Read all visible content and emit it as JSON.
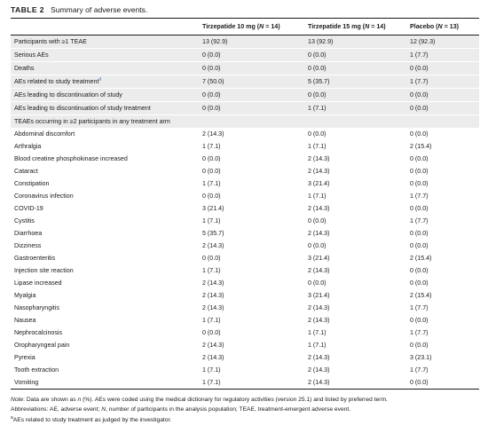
{
  "caption": {
    "label": "TABLE 2",
    "text": "Summary of adverse events."
  },
  "columns": [
    {
      "pre": "",
      "it": "",
      "post": ""
    },
    {
      "pre": "Tirzepatide 10 mg (",
      "it": "N",
      "post": " = 14)"
    },
    {
      "pre": "Tirzepatide 15 mg (",
      "it": "N",
      "post": " = 14)"
    },
    {
      "pre": "Placebo (",
      "it": "N",
      "post": " = 13)"
    }
  ],
  "summary_rows": [
    {
      "label": "Participants with ≥1 TEAE",
      "values": [
        "13 (92.9)",
        "13 (92.9)",
        "12 (92.3)"
      ]
    },
    {
      "label": "Serious AEs",
      "values": [
        "0 (0.0)",
        "0 (0.0)",
        "1 (7.7)"
      ]
    },
    {
      "label": "Deaths",
      "values": [
        "0 (0.0)",
        "0 (0.0)",
        "0 (0.0)"
      ]
    },
    {
      "label": "AEs related to study treatment",
      "mark": "a",
      "values": [
        "7 (50.0)",
        "5 (35.7)",
        "1 (7.7)"
      ]
    },
    {
      "label": "AEs leading to discontinuation of study",
      "values": [
        "0 (0.0)",
        "0 (0.0)",
        "0 (0.0)"
      ]
    },
    {
      "label": "AEs leading to discontinuation of study treatment",
      "values": [
        "0 (0.0)",
        "1 (7.1)",
        "0 (0.0)"
      ]
    }
  ],
  "section_heading": "TEAEs occurring in ≥2 participants in any treatment arm",
  "teae_rows": [
    {
      "label": "Abdominal discomfort",
      "values": [
        "2 (14.3)",
        "0 (0.0)",
        "0 (0.0)"
      ]
    },
    {
      "label": "Arthralgia",
      "values": [
        "1 (7.1)",
        "1 (7.1)",
        "2 (15.4)"
      ]
    },
    {
      "label": "Blood creatine phosphokinase increased",
      "values": [
        "0 (0.0)",
        "2 (14.3)",
        "0 (0.0)"
      ]
    },
    {
      "label": "Cataract",
      "values": [
        "0 (0.0)",
        "2 (14.3)",
        "0 (0.0)"
      ]
    },
    {
      "label": "Constipation",
      "values": [
        "1 (7.1)",
        "3 (21.4)",
        "0 (0.0)"
      ]
    },
    {
      "label": "Coronavirus infection",
      "values": [
        "0 (0.0)",
        "1 (7.1)",
        "1 (7.7)"
      ]
    },
    {
      "label": "COVID-19",
      "values": [
        "3 (21.4)",
        "2 (14.3)",
        "0 (0.0)"
      ]
    },
    {
      "label": "Cystitis",
      "values": [
        "1 (7.1)",
        "0 (0.0)",
        "1 (7.7)"
      ]
    },
    {
      "label": "Diarrhoea",
      "values": [
        "5 (35.7)",
        "2 (14.3)",
        "0 (0.0)"
      ]
    },
    {
      "label": "Dizziness",
      "values": [
        "2 (14.3)",
        "0 (0.0)",
        "0 (0.0)"
      ]
    },
    {
      "label": "Gastroenteritis",
      "values": [
        "0 (0.0)",
        "3 (21.4)",
        "2 (15.4)"
      ]
    },
    {
      "label": "Injection site reaction",
      "values": [
        "1 (7.1)",
        "2 (14.3)",
        "0 (0.0)"
      ]
    },
    {
      "label": "Lipase increased",
      "values": [
        "2 (14.3)",
        "0 (0.0)",
        "0 (0.0)"
      ]
    },
    {
      "label": "Myalgia",
      "values": [
        "2 (14.3)",
        "3 (21.4)",
        "2 (15.4)"
      ]
    },
    {
      "label": "Nasopharyngitis",
      "values": [
        "2 (14.3)",
        "2 (14.3)",
        "1 (7.7)"
      ]
    },
    {
      "label": "Nausea",
      "values": [
        "1 (7.1)",
        "2 (14.3)",
        "0 (0.0)"
      ]
    },
    {
      "label": "Nephrocalcinosis",
      "values": [
        "0 (0.0)",
        "1 (7.1)",
        "1 (7.7)"
      ]
    },
    {
      "label": "Oropharyngeal pain",
      "values": [
        "2 (14.3)",
        "1 (7.1)",
        "0 (0.0)"
      ]
    },
    {
      "label": "Pyrexia",
      "values": [
        "2 (14.3)",
        "2 (14.3)",
        "3 (23.1)"
      ]
    },
    {
      "label": "Tooth extraction",
      "values": [
        "1 (7.1)",
        "2 (14.3)",
        "1 (7.7)"
      ]
    },
    {
      "label": "Vomiting",
      "values": [
        "1 (7.1)",
        "2 (14.3)",
        "0 (0.0)"
      ]
    }
  ],
  "notes": {
    "note_label": "Note",
    "note_a": ": Data are shown as ",
    "note_italic": "n",
    "note_b": " (%). AEs were coded using the medical dictionary for regulatory activities (version 25.1) and listed by preferred term.",
    "abbr_a": "Abbreviations: AE, adverse event; ",
    "abbr_italic": "N",
    "abbr_b": ", number of participants in the analysis population; TEAE, treatment-emergent adverse event.",
    "footnote_mark": "a",
    "footnote_text": "AEs related to study treatment as judged by the investigator."
  }
}
